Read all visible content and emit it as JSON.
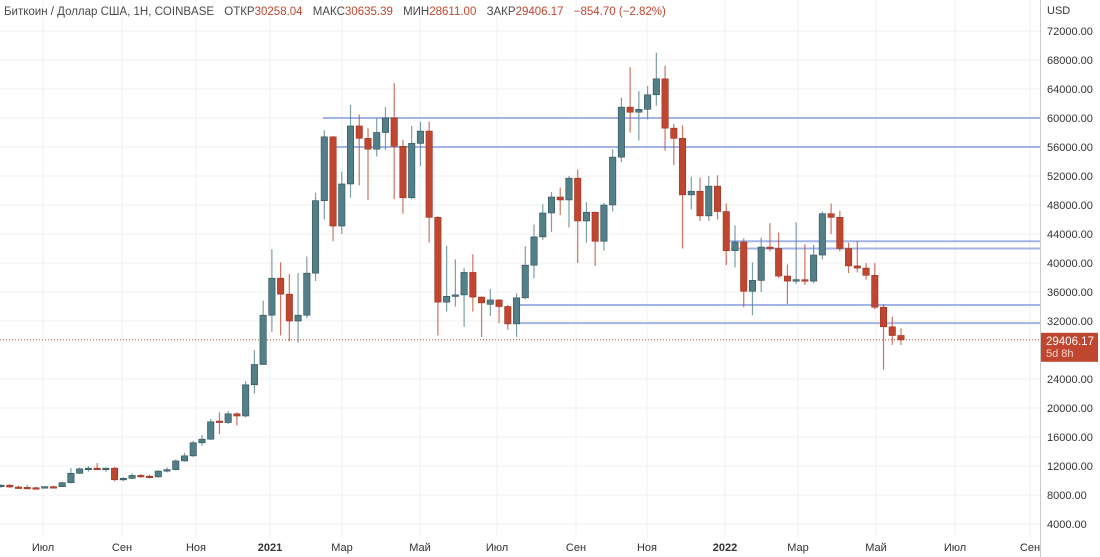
{
  "header": {
    "title": "Биткоин / Доллар США, 1H, COINBASE",
    "open_label": "ОТКР",
    "open": "30258.04",
    "high_label": "МАКС",
    "high": "30635.39",
    "low_label": "МИН",
    "low": "28611.00",
    "close_label": "ЗАКР",
    "close": "29406.17",
    "change": "−854.70 (−2.82%)"
  },
  "price_tag": {
    "price": "29406.17",
    "countdown": "5d 8h"
  },
  "colors": {
    "up": "#537f88",
    "down": "#c0462f",
    "level": "#a3b5e6",
    "price_line": "#c0462f"
  },
  "chart_data": {
    "type": "candlestick",
    "currency_label": "USD",
    "y_ticks": [
      "72000.00",
      "68000.00",
      "64000.00",
      "60000.00",
      "56000.00",
      "52000.00",
      "48000.00",
      "44000.00",
      "40000.00",
      "36000.00",
      "32000.00",
      "24000.00",
      "20000.00",
      "16000.00",
      "12000.00",
      "8000.00",
      "4000.00"
    ],
    "x_labels": [
      "Июл",
      "Сен",
      "Ноя",
      "2021",
      "Мар",
      "Май",
      "Июл",
      "Сен",
      "Ноя",
      "2022",
      "Мар",
      "Май",
      "Июл",
      "Сен"
    ],
    "ylim": [
      4000,
      72000
    ],
    "last_price": 29406.17,
    "levels": [
      60000,
      56000,
      43000,
      42000,
      34200,
      31700
    ],
    "ohlc": [
      [
        9200,
        9500,
        9000,
        9350
      ],
      [
        9350,
        9500,
        9000,
        9100
      ],
      [
        9100,
        9300,
        8900,
        9050
      ],
      [
        9050,
        9400,
        8800,
        9000
      ],
      [
        9000,
        9150,
        8850,
        8950
      ],
      [
        8950,
        9200,
        8900,
        9150
      ],
      [
        9150,
        9300,
        9050,
        9100
      ],
      [
        9150,
        9800,
        9100,
        9700
      ],
      [
        9700,
        11700,
        9600,
        11000
      ],
      [
        11000,
        11800,
        10900,
        11600
      ],
      [
        11600,
        12000,
        11200,
        11700
      ],
      [
        11700,
        12400,
        11500,
        11650
      ],
      [
        11650,
        11800,
        11200,
        11700
      ],
      [
        11700,
        11900,
        9900,
        10100
      ],
      [
        10100,
        10500,
        9900,
        10300
      ],
      [
        10300,
        11000,
        10200,
        10700
      ],
      [
        10700,
        10900,
        10400,
        10600
      ],
      [
        10600,
        10800,
        10300,
        10500
      ],
      [
        10500,
        11400,
        10400,
        11300
      ],
      [
        11300,
        11800,
        11100,
        11500
      ],
      [
        11500,
        12900,
        11400,
        12700
      ],
      [
        12700,
        13800,
        12600,
        13400
      ],
      [
        13400,
        15500,
        13200,
        15200
      ],
      [
        15200,
        16300,
        14800,
        15700
      ],
      [
        15700,
        18500,
        15600,
        18100
      ],
      [
        18200,
        19400,
        16400,
        18000
      ],
      [
        18000,
        19600,
        17800,
        19200
      ],
      [
        19200,
        19400,
        17600,
        18900
      ],
      [
        18900,
        23700,
        18700,
        23200
      ],
      [
        23200,
        28000,
        22000,
        26000
      ],
      [
        26000,
        34800,
        26000,
        32800
      ],
      [
        32800,
        41900,
        30500,
        37900
      ],
      [
        37900,
        40100,
        30000,
        35700
      ],
      [
        35700,
        38500,
        29200,
        32000
      ],
      [
        32000,
        38600,
        29000,
        32800
      ],
      [
        32800,
        40900,
        32400,
        38600
      ],
      [
        38600,
        49700,
        37500,
        48600
      ],
      [
        48600,
        58300,
        46000,
        57400
      ],
      [
        57400,
        57500,
        43000,
        45100
      ],
      [
        45100,
        52600,
        44000,
        50900
      ],
      [
        50900,
        61800,
        49000,
        58900
      ],
      [
        58900,
        60500,
        50700,
        57200
      ],
      [
        57200,
        58600,
        48700,
        55700
      ],
      [
        55700,
        60000,
        54700,
        58000
      ],
      [
        58000,
        61500,
        55600,
        60000
      ],
      [
        60000,
        64800,
        48800,
        56100
      ],
      [
        56100,
        57000,
        46800,
        49000
      ],
      [
        49000,
        58900,
        48800,
        56500
      ],
      [
        56500,
        59500,
        53400,
        58200
      ],
      [
        58200,
        59500,
        42800,
        46300
      ],
      [
        46300,
        46500,
        30000,
        34600
      ],
      [
        34600,
        42400,
        33300,
        35400
      ],
      [
        35400,
        40500,
        34000,
        35600
      ],
      [
        35600,
        39300,
        31200,
        38700
      ],
      [
        38700,
        41200,
        33300,
        35300
      ],
      [
        35300,
        35400,
        29800,
        34500
      ],
      [
        34300,
        36400,
        32700,
        34900
      ],
      [
        34900,
        35000,
        31700,
        34000
      ],
      [
        34000,
        34200,
        30800,
        31600
      ],
      [
        31600,
        35800,
        29800,
        35200
      ],
      [
        35200,
        42300,
        35000,
        39700
      ],
      [
        39700,
        45300,
        37900,
        43600
      ],
      [
        43600,
        48100,
        43200,
        46900
      ],
      [
        46900,
        49800,
        44300,
        49100
      ],
      [
        49100,
        50400,
        46600,
        48700
      ],
      [
        48700,
        52000,
        44900,
        51700
      ],
      [
        51700,
        52900,
        40000,
        45800
      ],
      [
        45800,
        48400,
        42800,
        47000
      ],
      [
        47000,
        47100,
        39600,
        43000
      ],
      [
        43000,
        48300,
        41700,
        48000
      ],
      [
        48000,
        55700,
        47100,
        54600
      ],
      [
        54600,
        62800,
        53900,
        61500
      ],
      [
        61500,
        67000,
        58000,
        60800
      ],
      [
        60800,
        63700,
        56900,
        61200
      ],
      [
        61200,
        64400,
        59800,
        63200
      ],
      [
        63200,
        69000,
        61700,
        65400
      ],
      [
        65400,
        67200,
        55500,
        58600
      ],
      [
        58600,
        59200,
        53500,
        57200
      ],
      [
        57200,
        59000,
        42000,
        49400
      ],
      [
        49400,
        51900,
        47400,
        49900
      ],
      [
        49900,
        51800,
        45800,
        46500
      ],
      [
        46500,
        52000,
        45800,
        50600
      ],
      [
        50600,
        52100,
        46000,
        47100
      ],
      [
        47100,
        48200,
        39700,
        41700
      ],
      [
        41700,
        45200,
        39400,
        42900
      ],
      [
        42900,
        43400,
        33900,
        36100
      ],
      [
        36100,
        40100,
        32800,
        37600
      ],
      [
        37600,
        43500,
        36000,
        42200
      ],
      [
        42200,
        45500,
        41600,
        42000
      ],
      [
        42000,
        44200,
        37900,
        38200
      ],
      [
        38200,
        39800,
        34300,
        37500
      ],
      [
        37500,
        45600,
        37100,
        37700
      ],
      [
        37700,
        42600,
        37000,
        37500
      ],
      [
        37500,
        42500,
        37200,
        41100
      ],
      [
        41100,
        47100,
        40500,
        46800
      ],
      [
        46800,
        48200,
        44000,
        46300
      ],
      [
        46300,
        47200,
        41600,
        42000
      ],
      [
        42000,
        42800,
        38600,
        39600
      ],
      [
        39600,
        43000,
        38700,
        39300
      ],
      [
        39300,
        40000,
        37700,
        38300
      ],
      [
        38300,
        40000,
        33600,
        33900
      ],
      [
        33900,
        34300,
        25300,
        31200
      ],
      [
        31200,
        32600,
        28700,
        30000
      ],
      [
        30000,
        31000,
        28700,
        29400
      ]
    ]
  }
}
